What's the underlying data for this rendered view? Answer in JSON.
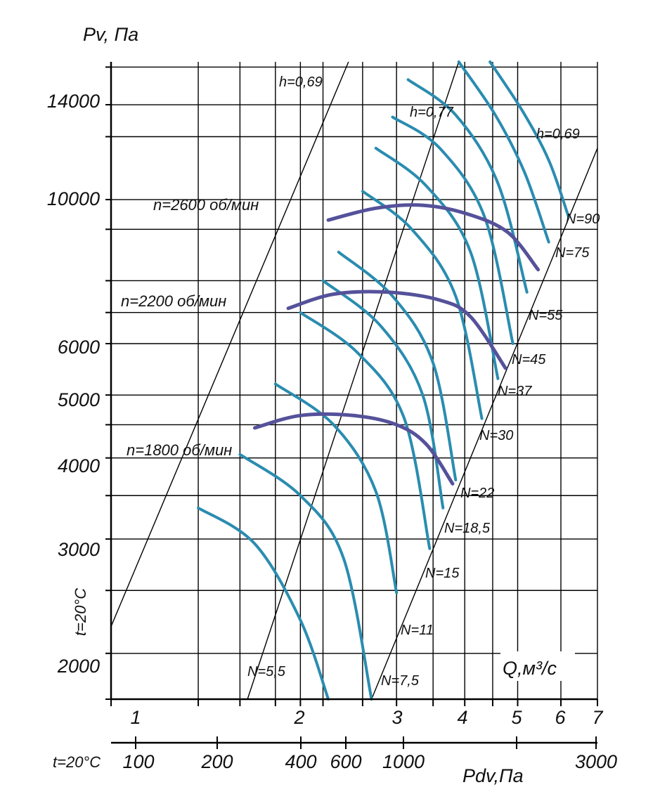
{
  "chart_data": {
    "type": "line",
    "y_axis": {
      "label": "Pv, Па",
      "scale": "log",
      "ticks": [
        2000,
        3000,
        4000,
        5000,
        6000,
        10000,
        14000
      ],
      "tick_labels": [
        "2000",
        "3000",
        "4000",
        "5000",
        "6000",
        "10000",
        "14000"
      ],
      "gridlines": [
        1700,
        2000,
        2500,
        3000,
        3500,
        4000,
        4500,
        5000,
        6000,
        6700,
        7500,
        9000,
        10000,
        12500,
        14000,
        16000
      ],
      "range": [
        1700,
        16300
      ]
    },
    "x_axis": {
      "label": "Q,м³/с",
      "scale": "log",
      "ticks": [
        1,
        2,
        3,
        4,
        5,
        6,
        7
      ],
      "tick_labels": [
        "1",
        "2",
        "3",
        "4",
        "5",
        "6",
        "7"
      ],
      "gridlines": [
        0.9,
        1.3,
        1.55,
        1.8,
        2,
        2.2,
        2.6,
        3,
        3.5,
        4,
        4.5,
        5,
        6,
        7
      ],
      "range": [
        0.9,
        7
      ]
    },
    "x2_axis": {
      "label": "Pdv,Па",
      "temperature_label": "t=20°C",
      "ticks": [
        100,
        200,
        400,
        600,
        1000,
        3000
      ],
      "tick_labels": [
        "100",
        "200",
        "400",
        "600",
        "1000",
        "3000"
      ]
    },
    "y_temperature_label": "t=20°C",
    "grid": true,
    "series": [
      {
        "group": "power",
        "name": "N=5,5",
        "color": "#2a8cb0",
        "x": [
          1.3,
          1.65,
          2.0,
          2.25
        ],
        "y": [
          3350,
          2950,
          2250,
          1700
        ]
      },
      {
        "group": "power",
        "name": "N=7,5",
        "color": "#2a8cb0",
        "x": [
          1.55,
          2.0,
          2.4,
          2.7
        ],
        "y": [
          4050,
          3500,
          2800,
          1700
        ]
      },
      {
        "group": "power",
        "name": "N=11",
        "color": "#2a8cb0",
        "x": [
          1.8,
          2.3,
          2.75,
          3.0
        ],
        "y": [
          5200,
          4500,
          3550,
          2480
        ]
      },
      {
        "group": "power",
        "name": "N=15",
        "color": "#2a8cb0",
        "x": [
          2.0,
          2.55,
          3.1,
          3.45
        ],
        "y": [
          6700,
          5800,
          4600,
          2900
        ]
      },
      {
        "group": "power",
        "name": "N=18,5",
        "color": "#2a8cb0",
        "x": [
          2.2,
          2.8,
          3.35,
          3.65
        ],
        "y": [
          7500,
          6400,
          5000,
          3350
        ]
      },
      {
        "group": "power",
        "name": "N=22",
        "color": "#2a8cb0",
        "x": [
          2.35,
          2.95,
          3.5,
          3.85
        ],
        "y": [
          8300,
          7100,
          5600,
          3700
        ]
      },
      {
        "group": "power",
        "name": "N=30",
        "color": "#2a8cb0",
        "x": [
          2.6,
          3.2,
          3.85,
          4.3
        ],
        "y": [
          10300,
          9000,
          7100,
          4600
        ]
      },
      {
        "group": "power",
        "name": "N=37",
        "color": "#2a8cb0",
        "x": [
          2.75,
          3.4,
          4.1,
          4.6
        ],
        "y": [
          12000,
          10500,
          8300,
          5300
        ]
      },
      {
        "group": "power",
        "name": "N=45",
        "color": "#2a8cb0",
        "x": [
          2.95,
          3.6,
          4.35,
          4.9
        ],
        "y": [
          13400,
          12000,
          9400,
          6000
        ]
      },
      {
        "group": "power",
        "name": "N=55",
        "color": "#2a8cb0",
        "x": [
          3.15,
          3.85,
          4.6,
          5.2
        ],
        "y": [
          15300,
          13500,
          10600,
          7200
        ]
      },
      {
        "group": "power",
        "name": "N=75",
        "color": "#2a8cb0",
        "x": [
          3.9,
          4.55,
          5.15,
          5.7
        ],
        "y": [
          16300,
          13500,
          11000,
          8600
        ]
      },
      {
        "group": "power",
        "name": "N=90",
        "color": "#2a8cb0",
        "x": [
          4.45,
          5.1,
          5.7,
          6.2
        ],
        "y": [
          16300,
          13700,
          11500,
          9400
        ]
      },
      {
        "group": "speed",
        "name": "n=1800 об/мин",
        "color": "#55519a",
        "x": [
          1.65,
          2.0,
          2.5,
          3.0,
          3.4,
          3.8
        ],
        "y": [
          4450,
          4650,
          4650,
          4500,
          4200,
          3650
        ]
      },
      {
        "group": "speed",
        "name": "n=2200 об/мин",
        "color": "#55519a",
        "x": [
          1.9,
          2.3,
          2.9,
          3.6,
          4.1,
          4.75
        ],
        "y": [
          6800,
          7150,
          7200,
          7000,
          6600,
          5500
        ]
      },
      {
        "group": "speed",
        "name": "n=2600 об/мин",
        "color": "#55519a",
        "x": [
          2.25,
          2.75,
          3.35,
          4.05,
          4.8,
          5.45
        ],
        "y": [
          9300,
          9700,
          9800,
          9500,
          8900,
          7800
        ]
      }
    ],
    "reference_lines": [
      {
        "x": [
          0.9,
          2.45
        ],
        "y": [
          2200,
          16300
        ]
      },
      {
        "x": [
          1.6,
          3.9
        ],
        "y": [
          1700,
          16300
        ]
      },
      {
        "x": [
          2.7,
          7.0
        ],
        "y": [
          1700,
          12000
        ]
      }
    ],
    "annotations": [
      "h=0,69",
      "h=0,77",
      "h=0,69"
    ],
    "legend": "none"
  }
}
